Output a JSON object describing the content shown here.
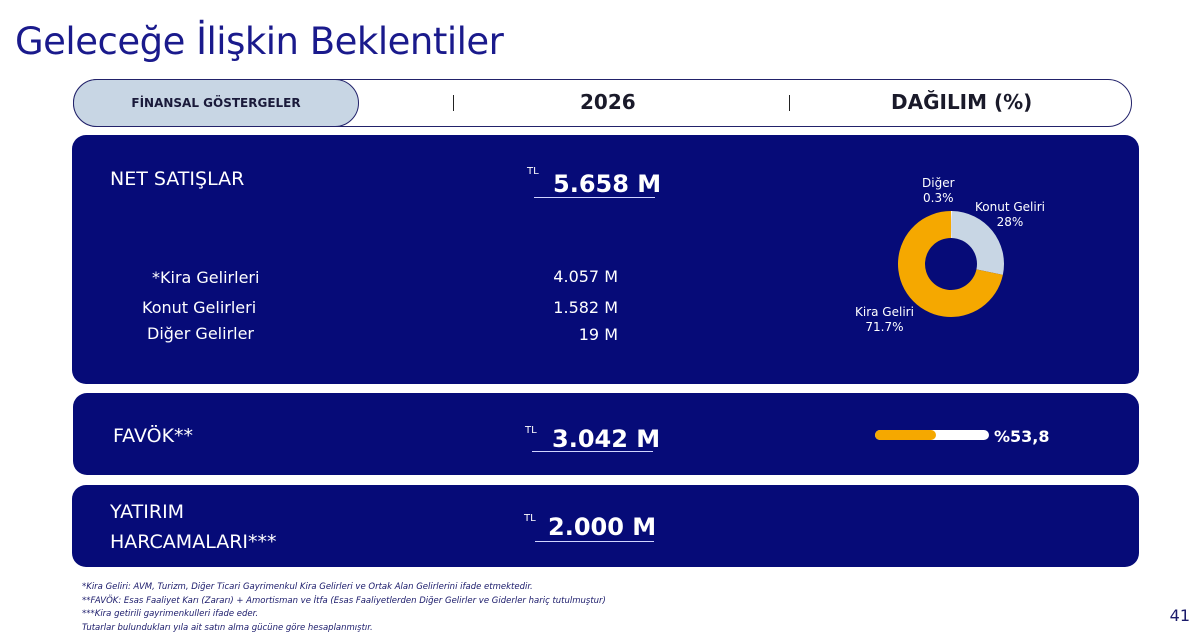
{
  "page": {
    "title": "Geleceğe İlişkin Beklentiler",
    "page_number": "41"
  },
  "header": {
    "col1": "FİNANSAL GÖSTERGELER",
    "col2": "2026",
    "col3": "DAĞILIM (%)"
  },
  "net_sales": {
    "label": "NET SATIŞLAR",
    "currency": "TL",
    "value": "5.658 M",
    "items": [
      {
        "label": "*Kira Gelirleri",
        "value": "4.057 M"
      },
      {
        "label": "Konut Gelirleri",
        "value": "1.582 M"
      },
      {
        "label": "Diğer Gelirler",
        "value": "19 M"
      }
    ],
    "distribution": [
      {
        "name": "Diğer",
        "pct_label": "0.3%",
        "pct": 0.3,
        "color": "#ffffff"
      },
      {
        "name": "Konut Geliri",
        "pct_label": "28%",
        "pct": 28,
        "color": "#c8d6e4"
      },
      {
        "name": "Kira Geliri",
        "pct_label": "71.7%",
        "pct": 71.7,
        "color": "#f5a800"
      }
    ]
  },
  "favok": {
    "label": "FAVÖK**",
    "currency": "TL",
    "value": "3.042 M",
    "ratio_label": "%53,8",
    "ratio": 0.538,
    "bar_color": "#f5a800"
  },
  "capex": {
    "label_line1": "YATIRIM",
    "label_line2": "HARCAMALARI***",
    "currency": "TL",
    "value": "2.000 M"
  },
  "footnotes": [
    "*Kira Geliri: AVM, Turizm, Diğer Ticari Gayrimenkul Kira Gelirleri ve Ortak Alan Gelirlerini ifade etmektedir.",
    "**FAVÖK: Esas Faaliyet Karı (Zararı) + Amortisman ve İtfa (Esas Faaliyetlerden Diğer Gelirler ve Giderler hariç tutulmuştur)",
    "***Kira getirili gayrimenkulleri ifade eder.",
    "Tutarlar bulundukları yıla ait satın alma gücüne göre hesaplanmıştır."
  ],
  "colors": {
    "panel": "#060b78",
    "title": "#1a1a8c",
    "accent": "#f5a800"
  }
}
